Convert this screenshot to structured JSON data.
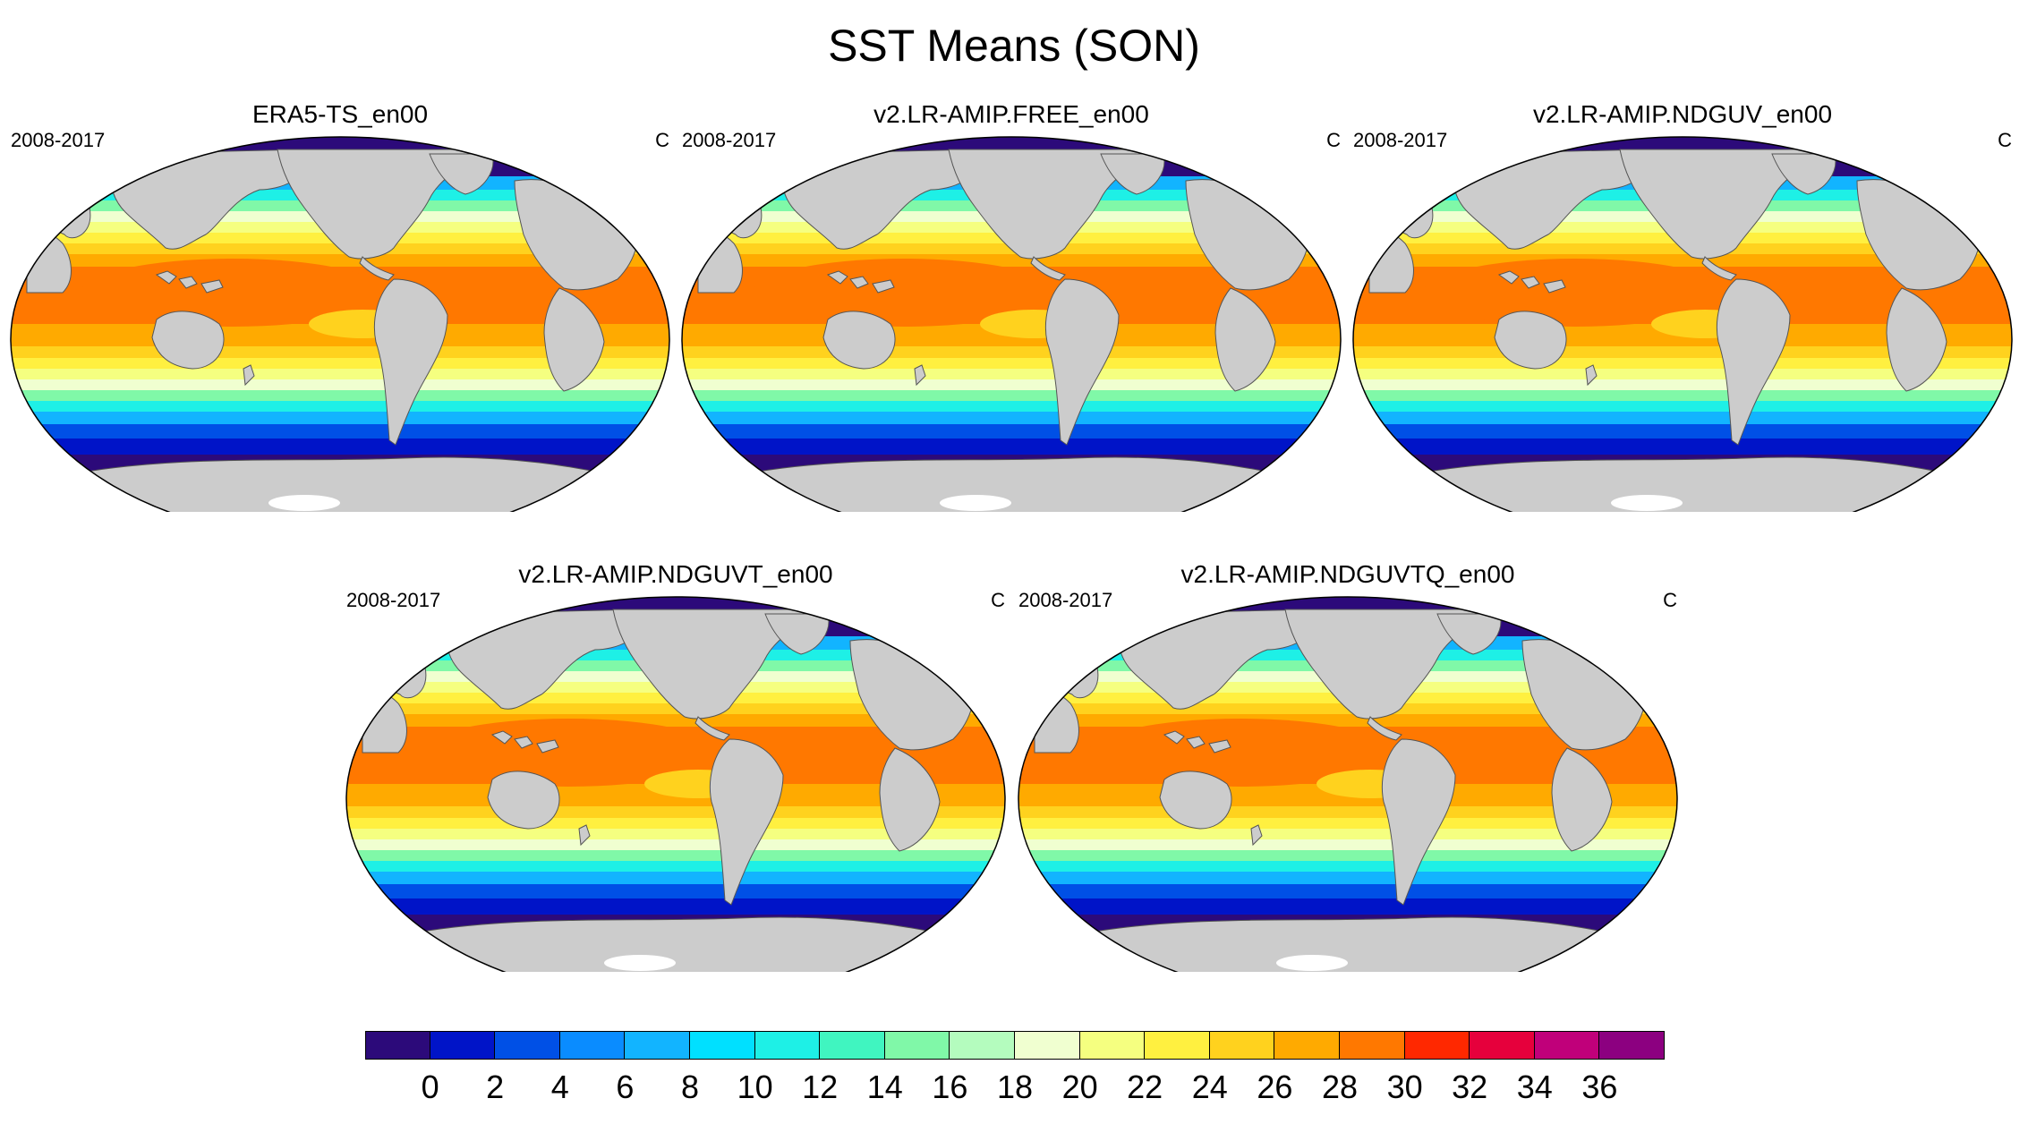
{
  "figure": {
    "title": "SST Means (SON)"
  },
  "panels": [
    {
      "title": "ERA5-TS_en00",
      "period": "2008-2017",
      "units": "C"
    },
    {
      "title": "v2.LR-AMIP.FREE_en00",
      "period": "2008-2017",
      "units": "C"
    },
    {
      "title": "v2.LR-AMIP.NDGUV_en00",
      "period": "2008-2017",
      "units": "C"
    },
    {
      "title": "v2.LR-AMIP.NDGUVT_en00",
      "period": "2008-2017",
      "units": "C"
    },
    {
      "title": "v2.LR-AMIP.NDGUVTQ_en00",
      "period": "2008-2017",
      "units": "C"
    }
  ],
  "colorbar": {
    "colors": [
      "#2c0a7a",
      "#0014c8",
      "#0050e6",
      "#0a8cff",
      "#12b4ff",
      "#00e0ff",
      "#1ef0e6",
      "#40f5c0",
      "#80f8a8",
      "#b4fcbe",
      "#f0ffd0",
      "#f5ff80",
      "#fff040",
      "#ffd21e",
      "#ffaa00",
      "#ff7800",
      "#ff2800",
      "#e6003c",
      "#c0007a",
      "#8c0080"
    ],
    "tick_labels": [
      "0",
      "2",
      "4",
      "6",
      "8",
      "10",
      "12",
      "14",
      "16",
      "18",
      "20",
      "22",
      "24",
      "26",
      "28",
      "30",
      "32",
      "34",
      "36"
    ]
  }
}
